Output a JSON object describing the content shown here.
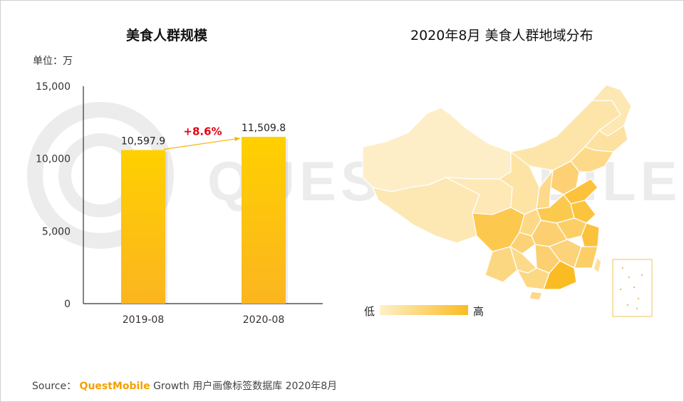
{
  "left_title": "美食人群规模",
  "right_title": "2020年8月 美食人群地域分布",
  "unit_label": "单位：万",
  "watermark": "QUEST MOBILE",
  "source": {
    "prefix": "Source：",
    "brand": "QuestMobile",
    "rest": "Growth 用户画像标签数据库 2020年8月"
  },
  "colors": {
    "bar_top": "#ffd000",
    "bar_bottom": "#fbb520",
    "growth": "#e60012",
    "map_light": "#fff0c8",
    "map_dark": "#fbbb22"
  },
  "chart_data": [
    {
      "type": "bar",
      "title": "美食人群规模",
      "categories": [
        "2019-08",
        "2020-08"
      ],
      "values": [
        10597.9,
        11509.8
      ],
      "value_labels": [
        "10,597.9",
        "11,509.8"
      ],
      "ylabel": "单位：万",
      "ylim": [
        0,
        15000
      ],
      "yticks": [
        0,
        5000,
        10000,
        15000
      ],
      "ytick_labels": [
        "0",
        "5,000",
        "10,000",
        "15,000"
      ],
      "annotation": "+8.6%"
    },
    {
      "type": "heatmap",
      "title": "2020年8月 美食人群地域分布",
      "legend": {
        "low": "低",
        "high": "高"
      }
    }
  ]
}
